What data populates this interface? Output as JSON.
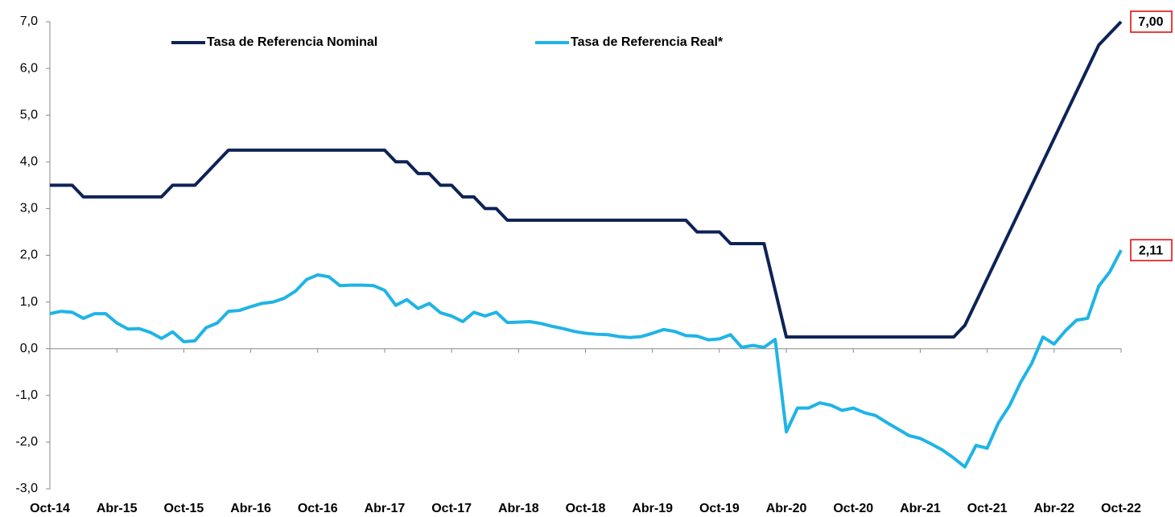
{
  "chart_data": {
    "type": "line",
    "categories": [
      "Oct-14",
      null,
      null,
      null,
      null,
      null,
      "Abr-15",
      null,
      null,
      null,
      null,
      null,
      "Oct-15",
      null,
      null,
      null,
      null,
      null,
      "Abr-16",
      null,
      null,
      null,
      null,
      null,
      "Oct-16",
      null,
      null,
      null,
      null,
      null,
      "Abr-17",
      null,
      null,
      null,
      null,
      null,
      "Oct-17",
      null,
      null,
      null,
      null,
      null,
      "Abr-18",
      null,
      null,
      null,
      null,
      null,
      "Oct-18",
      null,
      null,
      null,
      null,
      null,
      "Abr-19",
      null,
      null,
      null,
      null,
      null,
      "Oct-19",
      null,
      null,
      null,
      null,
      null,
      "Abr-20",
      null,
      null,
      null,
      null,
      null,
      "Oct-20",
      null,
      null,
      null,
      null,
      null,
      "Abr-21",
      null,
      null,
      null,
      null,
      null,
      "Oct-21",
      null,
      null,
      null,
      null,
      null,
      "Abr-22",
      null,
      null,
      null,
      null,
      null,
      "Oct-22"
    ],
    "series": [
      {
        "name": "Tasa de Referencia Nominal",
        "color": "#0d2357",
        "values": [
          3.5,
          3.5,
          3.5,
          3.25,
          3.25,
          3.25,
          3.25,
          3.25,
          3.25,
          3.25,
          3.25,
          3.5,
          3.5,
          3.5,
          3.75,
          4.0,
          4.25,
          4.25,
          4.25,
          4.25,
          4.25,
          4.25,
          4.25,
          4.25,
          4.25,
          4.25,
          4.25,
          4.25,
          4.25,
          4.25,
          4.25,
          4.0,
          4.0,
          3.75,
          3.75,
          3.5,
          3.5,
          3.25,
          3.25,
          3.0,
          3.0,
          2.75,
          2.75,
          2.75,
          2.75,
          2.75,
          2.75,
          2.75,
          2.75,
          2.75,
          2.75,
          2.75,
          2.75,
          2.75,
          2.75,
          2.75,
          2.75,
          2.75,
          2.5,
          2.5,
          2.5,
          2.25,
          2.25,
          2.25,
          2.25,
          1.25,
          0.25,
          0.25,
          0.25,
          0.25,
          0.25,
          0.25,
          0.25,
          0.25,
          0.25,
          0.25,
          0.25,
          0.25,
          0.25,
          0.25,
          0.25,
          0.25,
          0.5,
          1.0,
          1.5,
          2.0,
          2.5,
          3.0,
          3.5,
          4.0,
          4.5,
          5.0,
          5.5,
          6.0,
          6.5,
          6.75,
          7.0
        ],
        "value_labels": [
          null,
          null,
          null,
          null,
          null,
          null,
          null,
          null,
          null,
          null,
          null,
          null,
          null,
          null,
          null,
          null,
          null,
          null,
          null,
          null,
          null,
          null,
          null,
          null,
          null,
          null,
          null,
          null,
          null,
          null,
          null,
          null,
          null,
          null,
          null,
          null,
          null,
          null,
          null,
          null,
          null,
          null,
          null,
          null,
          null,
          null,
          null,
          null,
          null,
          null,
          null,
          null,
          null,
          null,
          null,
          null,
          null,
          null,
          null,
          null,
          null,
          null,
          null,
          null,
          null,
          null,
          null,
          null,
          null,
          null,
          null,
          null,
          null,
          null,
          null,
          null,
          null,
          null,
          null,
          null,
          null,
          null,
          null,
          null,
          null,
          null,
          null,
          null,
          null,
          null,
          null,
          null,
          null,
          null,
          null,
          null,
          "7,00"
        ]
      },
      {
        "name": "Tasa de Referencia Real*",
        "color": "#1fb4e6",
        "values": [
          0.75,
          0.8,
          0.78,
          0.65,
          0.75,
          0.75,
          0.55,
          0.42,
          0.43,
          0.35,
          0.22,
          0.36,
          0.15,
          0.17,
          0.45,
          0.55,
          0.8,
          0.82,
          0.9,
          0.97,
          1.0,
          1.08,
          1.23,
          1.48,
          1.58,
          1.54,
          1.35,
          1.36,
          1.36,
          1.35,
          1.25,
          0.93,
          1.05,
          0.86,
          0.97,
          0.77,
          0.7,
          0.58,
          0.78,
          0.7,
          0.78,
          0.56,
          0.57,
          0.58,
          0.54,
          0.48,
          0.43,
          0.37,
          0.33,
          0.31,
          0.3,
          0.26,
          0.24,
          0.26,
          0.33,
          0.41,
          0.37,
          0.28,
          0.27,
          0.19,
          0.21,
          0.3,
          0.03,
          0.07,
          0.03,
          0.2,
          -1.78,
          -1.27,
          -1.27,
          -1.16,
          -1.21,
          -1.32,
          -1.27,
          -1.37,
          -1.43,
          -1.58,
          -1.72,
          -1.86,
          -1.92,
          -2.04,
          -2.17,
          -2.34,
          -2.53,
          -2.07,
          -2.13,
          -1.59,
          -1.22,
          -0.72,
          -0.31,
          0.25,
          0.1,
          0.38,
          0.61,
          0.65,
          1.34,
          1.65,
          2.11
        ],
        "value_labels": [
          null,
          null,
          null,
          null,
          null,
          null,
          null,
          null,
          null,
          null,
          null,
          null,
          null,
          null,
          null,
          null,
          null,
          null,
          null,
          null,
          null,
          null,
          null,
          null,
          null,
          null,
          null,
          null,
          null,
          null,
          null,
          null,
          null,
          null,
          null,
          null,
          null,
          null,
          null,
          null,
          null,
          null,
          null,
          null,
          null,
          null,
          null,
          null,
          null,
          null,
          null,
          null,
          null,
          null,
          null,
          null,
          null,
          null,
          null,
          null,
          null,
          null,
          null,
          null,
          null,
          null,
          null,
          null,
          null,
          null,
          null,
          null,
          null,
          null,
          null,
          null,
          null,
          null,
          null,
          null,
          null,
          null,
          null,
          null,
          null,
          null,
          null,
          null,
          null,
          null,
          null,
          null,
          null,
          null,
          null,
          null,
          "2,11"
        ]
      }
    ],
    "ylim": [
      -3,
      7
    ],
    "yticks": [
      {
        "value": -3,
        "label": "-3,0"
      },
      {
        "value": -2,
        "label": "-2,0"
      },
      {
        "value": -1,
        "label": "-1,0"
      },
      {
        "value": 0,
        "label": "0,0"
      },
      {
        "value": 1,
        "label": "1,0"
      },
      {
        "value": 2,
        "label": "2,0"
      },
      {
        "value": 3,
        "label": "3,0"
      },
      {
        "value": 4,
        "label": "4,0"
      },
      {
        "value": 5,
        "label": "5,0"
      },
      {
        "value": 6,
        "label": "6,0"
      },
      {
        "value": 7,
        "label": "7,0"
      }
    ],
    "grid": false,
    "legend": "top"
  }
}
